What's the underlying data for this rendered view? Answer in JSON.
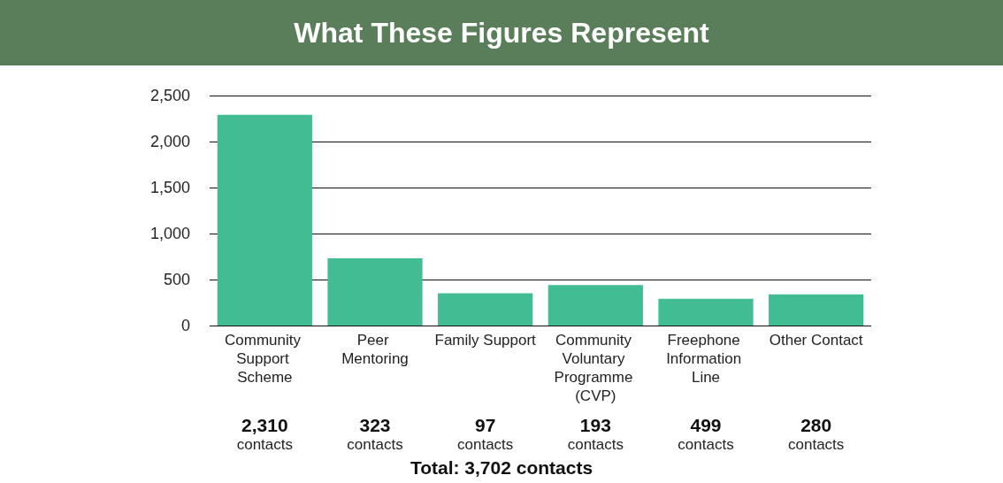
{
  "chart_data": {
    "type": "bar",
    "title": "What These Figures Represent",
    "categories": [
      "Community Support Scheme",
      "Peer Mentoring",
      "Family Support",
      "Community Voluntary Programme (CVP)",
      "Freephone Information Line",
      "Other Contact"
    ],
    "values": [
      2290,
      730,
      350,
      440,
      290,
      340
    ],
    "color": "#42bd93",
    "ylim": [
      0,
      2500
    ],
    "yticks": [
      0,
      500,
      {
        "value": 1000,
        "label": "1,000"
      },
      {
        "value": 1500,
        "label": "1,500"
      },
      {
        "value": 2000,
        "label": "2,000"
      },
      {
        "value": 2500,
        "label": "2,500"
      }
    ],
    "grid": "y",
    "annotations": [
      "2,310 contacts",
      "323 contacts",
      "97 contacts",
      "193 contacts",
      "499 contacts",
      "280 contacts",
      "Total: 3,702 contacts"
    ]
  }
}
